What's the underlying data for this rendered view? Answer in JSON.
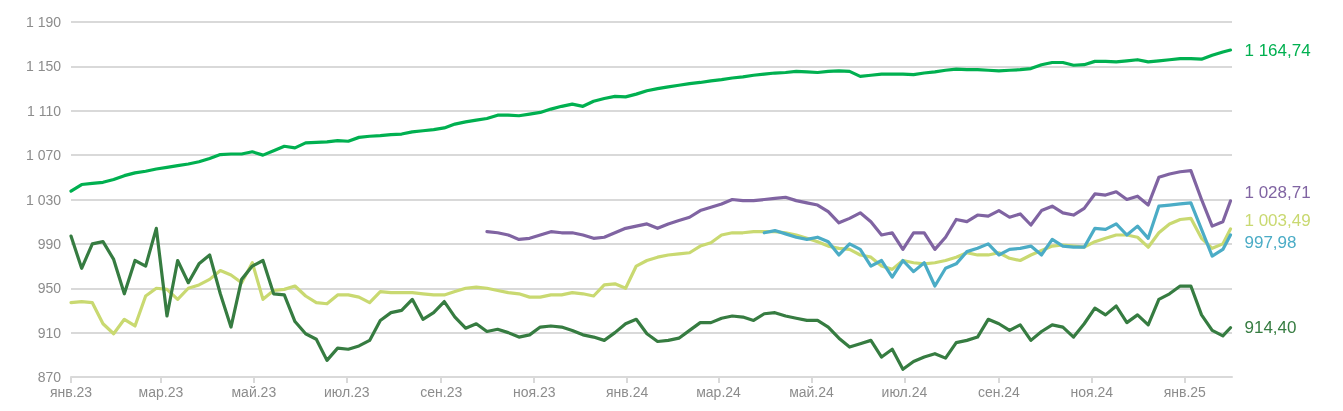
{
  "chart_data": {
    "type": "line",
    "x": [
      "2023-01-01",
      "2023-01-08",
      "2023-01-15",
      "2023-01-22",
      "2023-01-29",
      "2023-02-05",
      "2023-02-12",
      "2023-02-19",
      "2023-02-26",
      "2023-03-05",
      "2023-03-12",
      "2023-03-19",
      "2023-03-26",
      "2023-04-02",
      "2023-04-09",
      "2023-04-16",
      "2023-04-23",
      "2023-04-30",
      "2023-05-07",
      "2023-05-14",
      "2023-05-21",
      "2023-05-28",
      "2023-06-04",
      "2023-06-11",
      "2023-06-18",
      "2023-06-25",
      "2023-07-02",
      "2023-07-09",
      "2023-07-16",
      "2023-07-23",
      "2023-07-30",
      "2023-08-06",
      "2023-08-13",
      "2023-08-20",
      "2023-08-27",
      "2023-09-03",
      "2023-09-10",
      "2023-09-17",
      "2023-09-24",
      "2023-10-01",
      "2023-10-08",
      "2023-10-15",
      "2023-10-22",
      "2023-10-29",
      "2023-11-05",
      "2023-11-12",
      "2023-11-19",
      "2023-11-26",
      "2023-12-03",
      "2023-12-10",
      "2023-12-17",
      "2023-12-24",
      "2023-12-31",
      "2024-01-07",
      "2024-01-14",
      "2024-01-21",
      "2024-01-28",
      "2024-02-04",
      "2024-02-11",
      "2024-02-18",
      "2024-02-25",
      "2024-03-03",
      "2024-03-10",
      "2024-03-17",
      "2024-03-24",
      "2024-03-31",
      "2024-04-07",
      "2024-04-14",
      "2024-04-21",
      "2024-04-28",
      "2024-05-05",
      "2024-05-12",
      "2024-05-19",
      "2024-05-26",
      "2024-06-02",
      "2024-06-09",
      "2024-06-16",
      "2024-06-23",
      "2024-06-30",
      "2024-07-07",
      "2024-07-14",
      "2024-07-21",
      "2024-07-28",
      "2024-08-04",
      "2024-08-11",
      "2024-08-18",
      "2024-08-25",
      "2024-09-01",
      "2024-09-08",
      "2024-09-15",
      "2024-09-22",
      "2024-09-29",
      "2024-10-06",
      "2024-10-13",
      "2024-10-20",
      "2024-10-27",
      "2024-11-03",
      "2024-11-10",
      "2024-11-17",
      "2024-11-24",
      "2024-12-01",
      "2024-12-08",
      "2024-12-15",
      "2024-12-22",
      "2024-12-29",
      "2025-01-05",
      "2025-01-12",
      "2025-01-19",
      "2025-01-26",
      "2025-01-31"
    ],
    "series": [
      {
        "color": "#00b050",
        "values": [
          1037.5,
          1043.5,
          1044.5,
          1045.5,
          1048,
          1051.5,
          1054,
          1055.5,
          1057.5,
          1059,
          1060.5,
          1062,
          1064,
          1067,
          1070.5,
          1071,
          1071,
          1073,
          1070,
          1074,
          1078,
          1076.5,
          1081,
          1081.5,
          1082,
          1083,
          1082.5,
          1086,
          1087,
          1087.5,
          1088.5,
          1089,
          1091,
          1092,
          1093,
          1094.5,
          1098,
          1100,
          1101.5,
          1103,
          1106,
          1106,
          1105.5,
          1107,
          1108.5,
          1111.5,
          1114,
          1116,
          1114,
          1118.5,
          1121,
          1123,
          1122.5,
          1125,
          1128,
          1130,
          1131.5,
          1133,
          1134.5,
          1135.5,
          1137,
          1138,
          1139.5,
          1140.5,
          1142,
          1143,
          1144,
          1144.5,
          1145.5,
          1145,
          1144.5,
          1145.5,
          1146,
          1145.5,
          1141,
          1142,
          1143,
          1143,
          1143,
          1142.5,
          1144,
          1145,
          1146.5,
          1147.5,
          1147,
          1147,
          1146.5,
          1146,
          1146.5,
          1147,
          1148,
          1151.5,
          1153.5,
          1153.5,
          1151,
          1151.5,
          1154.5,
          1154.5,
          1154,
          1155,
          1156,
          1154,
          1155,
          1156,
          1157,
          1157,
          1156.5,
          1160,
          1163,
          1164.74
        ],
        "value_labels": [
          null,
          null,
          null,
          null,
          null,
          null,
          null,
          null,
          null,
          null,
          null,
          null,
          null,
          null,
          null,
          null,
          null,
          null,
          null,
          null,
          null,
          null,
          null,
          null,
          null,
          null,
          null,
          null,
          null,
          null,
          null,
          null,
          null,
          null,
          null,
          null,
          null,
          null,
          null,
          null,
          null,
          null,
          null,
          null,
          null,
          null,
          null,
          null,
          null,
          null,
          null,
          null,
          null,
          null,
          null,
          null,
          null,
          null,
          null,
          null,
          null,
          null,
          null,
          null,
          null,
          null,
          null,
          null,
          null,
          null,
          null,
          null,
          null,
          null,
          null,
          null,
          null,
          null,
          null,
          null,
          null,
          null,
          null,
          null,
          null,
          null,
          null,
          null,
          null,
          null,
          null,
          null,
          null,
          null,
          null,
          null,
          null,
          null,
          null,
          null,
          null,
          null,
          null,
          null,
          null,
          null,
          null,
          null,
          null,
          "1 164,74"
        ]
      },
      {
        "color": "#c9d971",
        "values": [
          937,
          938,
          937,
          918,
          909,
          922,
          916,
          943,
          950,
          949,
          940,
          950,
          953,
          958,
          966,
          962,
          955,
          973,
          940,
          948,
          949,
          952,
          943,
          937,
          936,
          944,
          944,
          942,
          937,
          947,
          946,
          946,
          946,
          945,
          944,
          944,
          947,
          950,
          951,
          950,
          948,
          946,
          945,
          942,
          942,
          944,
          944,
          946,
          945,
          943,
          953,
          954,
          950,
          970,
          975,
          978,
          980,
          981,
          982,
          988,
          991,
          998,
          1000,
          1000,
          1001,
          1001,
          1001,
          1000,
          998,
          995,
          992,
          988,
          986,
          985,
          980,
          978,
          970,
          967,
          975,
          973,
          972,
          973,
          975,
          978,
          982,
          980,
          980,
          982,
          977,
          975,
          980,
          984,
          988,
          989,
          988,
          987,
          992,
          995,
          998,
          998,
          996,
          987,
          1000,
          1008,
          1012,
          1013,
          995,
          986,
          990,
          1003.49
        ],
        "value_labels": [
          null,
          null,
          null,
          null,
          null,
          null,
          null,
          null,
          null,
          null,
          null,
          null,
          null,
          null,
          null,
          null,
          null,
          null,
          null,
          null,
          null,
          null,
          null,
          null,
          null,
          null,
          null,
          null,
          null,
          null,
          null,
          null,
          null,
          null,
          null,
          null,
          null,
          null,
          null,
          null,
          null,
          null,
          null,
          null,
          null,
          null,
          null,
          null,
          null,
          null,
          null,
          null,
          null,
          null,
          null,
          null,
          null,
          null,
          null,
          null,
          null,
          null,
          null,
          null,
          null,
          null,
          null,
          null,
          null,
          null,
          null,
          null,
          null,
          null,
          null,
          null,
          null,
          null,
          null,
          null,
          null,
          null,
          null,
          null,
          null,
          null,
          null,
          null,
          null,
          null,
          null,
          null,
          null,
          null,
          null,
          null,
          null,
          null,
          null,
          null,
          null,
          null,
          null,
          null,
          null,
          null,
          null,
          null,
          null,
          "1 003,49"
        ]
      },
      {
        "color": "#367c41",
        "values": [
          997,
          968,
          990,
          992,
          976,
          945,
          975,
          970,
          1004,
          925,
          975,
          955,
          972,
          980,
          945,
          915,
          958,
          970,
          975,
          945,
          944,
          920,
          909,
          904,
          885,
          896,
          895,
          898,
          903,
          921,
          928,
          930,
          940,
          922,
          928,
          938,
          924,
          914,
          918,
          911,
          913,
          910,
          906,
          908,
          915,
          916,
          915,
          912,
          908,
          906,
          903,
          910,
          918,
          922,
          909,
          902,
          903,
          905,
          912,
          919,
          919,
          923,
          925,
          924,
          921,
          927,
          928,
          925,
          923,
          921,
          921,
          915,
          905,
          897,
          900,
          903,
          888,
          895,
          877,
          884,
          888,
          891,
          887,
          901,
          903,
          906,
          922,
          918,
          912,
          917,
          903,
          911,
          917,
          915,
          906,
          918,
          932,
          926,
          934,
          919,
          926,
          917,
          940,
          945,
          952,
          952,
          926,
          912,
          907,
          914.4
        ],
        "value_labels": [
          null,
          null,
          null,
          null,
          null,
          null,
          null,
          null,
          null,
          null,
          null,
          null,
          null,
          null,
          null,
          null,
          null,
          null,
          null,
          null,
          null,
          null,
          null,
          null,
          null,
          null,
          null,
          null,
          null,
          null,
          null,
          null,
          null,
          null,
          null,
          null,
          null,
          null,
          null,
          null,
          null,
          null,
          null,
          null,
          null,
          null,
          null,
          null,
          null,
          null,
          null,
          null,
          null,
          null,
          null,
          null,
          null,
          null,
          null,
          null,
          null,
          null,
          null,
          null,
          null,
          null,
          null,
          null,
          null,
          null,
          null,
          null,
          null,
          null,
          null,
          null,
          null,
          null,
          null,
          null,
          null,
          null,
          null,
          null,
          null,
          null,
          null,
          null,
          null,
          null,
          null,
          null,
          null,
          null,
          null,
          null,
          null,
          null,
          null,
          null,
          null,
          null,
          null,
          null,
          null,
          null,
          null,
          null,
          null,
          "914,40"
        ]
      },
      {
        "color": "#8064a2",
        "values": [
          null,
          null,
          null,
          null,
          null,
          null,
          null,
          null,
          null,
          null,
          null,
          null,
          null,
          null,
          null,
          null,
          null,
          null,
          null,
          null,
          null,
          null,
          null,
          null,
          null,
          null,
          null,
          null,
          null,
          null,
          null,
          null,
          null,
          null,
          null,
          null,
          null,
          null,
          null,
          1001,
          1000,
          998,
          994,
          995,
          998,
          1001,
          1000,
          1000,
          998,
          995,
          996,
          1000,
          1004,
          1006,
          1008,
          1004,
          1008,
          1011,
          1014,
          1020,
          1023,
          1026,
          1030,
          1029,
          1029,
          1030,
          1031,
          1032,
          1029,
          1027,
          1025,
          1019,
          1009,
          1013,
          1018,
          1010,
          998,
          1000,
          985,
          1000,
          1000,
          985,
          996,
          1012,
          1010,
          1016,
          1015,
          1020,
          1014,
          1017,
          1007,
          1020,
          1024,
          1018,
          1016,
          1022,
          1035,
          1034,
          1037,
          1030,
          1033,
          1025,
          1050,
          1053,
          1055,
          1056,
          1030,
          1006,
          1010,
          1028.71
        ],
        "value_labels": [
          null,
          null,
          null,
          null,
          null,
          null,
          null,
          null,
          null,
          null,
          null,
          null,
          null,
          null,
          null,
          null,
          null,
          null,
          null,
          null,
          null,
          null,
          null,
          null,
          null,
          null,
          null,
          null,
          null,
          null,
          null,
          null,
          null,
          null,
          null,
          null,
          null,
          null,
          null,
          null,
          null,
          null,
          null,
          null,
          null,
          null,
          null,
          null,
          null,
          null,
          null,
          null,
          null,
          null,
          null,
          null,
          null,
          null,
          null,
          null,
          null,
          null,
          null,
          null,
          null,
          null,
          null,
          null,
          null,
          null,
          null,
          null,
          null,
          null,
          null,
          null,
          null,
          null,
          null,
          null,
          null,
          null,
          null,
          null,
          null,
          null,
          null,
          null,
          null,
          null,
          null,
          null,
          null,
          null,
          null,
          null,
          null,
          null,
          null,
          null,
          null,
          null,
          null,
          null,
          null,
          null,
          null,
          null,
          null,
          "1 028,71"
        ]
      },
      {
        "color": "#4bacc6",
        "values": [
          null,
          null,
          null,
          null,
          null,
          null,
          null,
          null,
          null,
          null,
          null,
          null,
          null,
          null,
          null,
          null,
          null,
          null,
          null,
          null,
          null,
          null,
          null,
          null,
          null,
          null,
          null,
          null,
          null,
          null,
          null,
          null,
          null,
          null,
          null,
          null,
          null,
          null,
          null,
          null,
          null,
          null,
          null,
          null,
          null,
          null,
          null,
          null,
          null,
          null,
          null,
          null,
          null,
          null,
          null,
          null,
          null,
          null,
          null,
          null,
          null,
          null,
          null,
          null,
          null,
          1000,
          1002,
          999,
          996,
          994,
          996,
          992,
          980,
          990,
          985,
          970,
          975,
          960,
          975,
          965,
          973,
          952,
          968,
          972,
          983,
          986,
          990,
          980,
          985,
          986,
          988,
          980,
          994,
          988,
          987,
          987,
          1004,
          1003,
          1008,
          998,
          1006,
          995,
          1024,
          1025,
          1026,
          1027,
          1003,
          979,
          985,
          997.98
        ],
        "value_labels": [
          null,
          null,
          null,
          null,
          null,
          null,
          null,
          null,
          null,
          null,
          null,
          null,
          null,
          null,
          null,
          null,
          null,
          null,
          null,
          null,
          null,
          null,
          null,
          null,
          null,
          null,
          null,
          null,
          null,
          null,
          null,
          null,
          null,
          null,
          null,
          null,
          null,
          null,
          null,
          null,
          null,
          null,
          null,
          null,
          null,
          null,
          null,
          null,
          null,
          null,
          null,
          null,
          null,
          null,
          null,
          null,
          null,
          null,
          null,
          null,
          null,
          null,
          null,
          null,
          null,
          null,
          null,
          null,
          null,
          null,
          null,
          null,
          null,
          null,
          null,
          null,
          null,
          null,
          null,
          null,
          null,
          null,
          null,
          null,
          null,
          null,
          null,
          null,
          null,
          null,
          null,
          null,
          null,
          null,
          null,
          null,
          null,
          null,
          null,
          null,
          null,
          null,
          null,
          null,
          null,
          null,
          null,
          null,
          null,
          "997,98"
        ]
      }
    ],
    "xlim": [
      "2023-01-01",
      "2025-02-01"
    ],
    "xticks": [
      {
        "value": "2023-01-01",
        "label": "янв.23"
      },
      {
        "value": "2023-03-01",
        "label": "мар.23"
      },
      {
        "value": "2023-05-01",
        "label": "май.23"
      },
      {
        "value": "2023-07-01",
        "label": "июл.23"
      },
      {
        "value": "2023-09-01",
        "label": "сен.23"
      },
      {
        "value": "2023-11-01",
        "label": "ноя.23"
      },
      {
        "value": "2024-01-01",
        "label": "янв.24"
      },
      {
        "value": "2024-03-01",
        "label": "мар.24"
      },
      {
        "value": "2024-05-01",
        "label": "май.24"
      },
      {
        "value": "2024-07-01",
        "label": "июл.24"
      },
      {
        "value": "2024-09-01",
        "label": "сен.24"
      },
      {
        "value": "2024-11-01",
        "label": "ноя.24"
      },
      {
        "value": "2025-01-01",
        "label": "янв.25"
      }
    ],
    "ylim": [
      870,
      1190
    ],
    "yticks": [
      870,
      910,
      950,
      990,
      {
        "value": 1030,
        "label": "1 030"
      },
      {
        "value": 1070,
        "label": "1 070"
      },
      {
        "value": 1110,
        "label": "1 110"
      },
      {
        "value": 1150,
        "label": "1 150"
      },
      {
        "value": 1190,
        "label": "1 190"
      }
    ],
    "grid": "y",
    "marker": "none",
    "line_style": "solid"
  }
}
